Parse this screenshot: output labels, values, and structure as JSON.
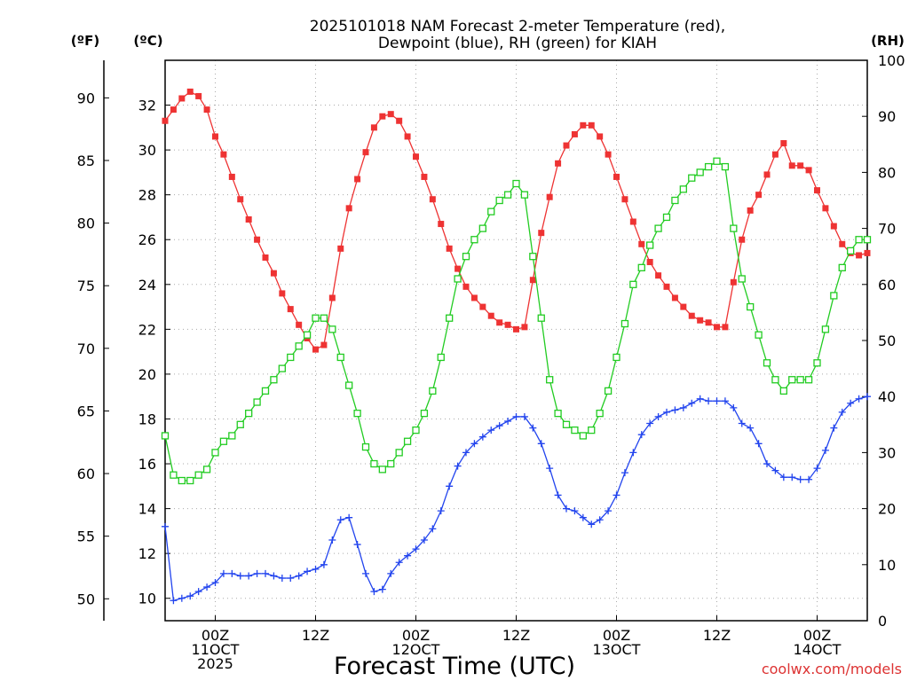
{
  "chart_data": {
    "type": "line",
    "title": "2025101018 NAM Forecast 2-meter Temperature (red),",
    "subtitle": "Dewpoint (blue), RH (green) for KIAH",
    "xlabel": "Forecast Time (UTC)",
    "credit": "coolwx.com/models",
    "units": {
      "fahrenheit": "(ºF)",
      "celsius": "(ºC)",
      "rh": "(RH)"
    },
    "x_start": "2025-10-10 18Z",
    "x_end": "2025-10-14 09Z",
    "x_step_hours": 1,
    "x_ticks": [
      {
        "time": "2025-10-11 00Z",
        "labels": [
          "00Z",
          "11OCT",
          "2025"
        ]
      },
      {
        "time": "2025-10-11 12Z",
        "labels": [
          "12Z"
        ]
      },
      {
        "time": "2025-10-12 00Z",
        "labels": [
          "00Z",
          "12OCT"
        ]
      },
      {
        "time": "2025-10-12 12Z",
        "labels": [
          "12Z"
        ]
      },
      {
        "time": "2025-10-13 00Z",
        "labels": [
          "00Z",
          "13OCT"
        ]
      },
      {
        "time": "2025-10-13 12Z",
        "labels": [
          "12Z"
        ]
      },
      {
        "time": "2025-10-14 00Z",
        "labels": [
          "00Z",
          "14OCT"
        ]
      }
    ],
    "y_left_f": {
      "range": [
        48.25,
        93.0
      ],
      "ticks": [
        50,
        55,
        60,
        65,
        70,
        75,
        80,
        85,
        90
      ]
    },
    "y_left_c": {
      "range": [
        9.0,
        34.0
      ],
      "ticks": [
        10,
        12,
        14,
        16,
        18,
        20,
        22,
        24,
        26,
        28,
        30,
        32
      ]
    },
    "y_right_rh": {
      "range": [
        0,
        100
      ],
      "ticks": [
        0,
        10,
        20,
        30,
        40,
        50,
        60,
        70,
        80,
        90,
        100
      ]
    },
    "grid": true,
    "series": [
      {
        "name": "2-meter Temperature",
        "color": "#ee3333",
        "marker": "filled-square",
        "axis": "celsius",
        "values": [
          31.3,
          31.8,
          32.3,
          32.6,
          32.4,
          31.8,
          30.6,
          29.8,
          28.8,
          27.8,
          26.9,
          26.0,
          25.2,
          24.5,
          23.6,
          22.9,
          22.2,
          21.6,
          21.1,
          21.3,
          23.4,
          25.6,
          27.4,
          28.7,
          29.9,
          31.0,
          31.5,
          31.6,
          31.3,
          30.6,
          29.7,
          28.8,
          27.8,
          26.7,
          25.6,
          24.7,
          23.9,
          23.4,
          23.0,
          22.6,
          22.3,
          22.2,
          22.0,
          22.1,
          24.2,
          26.3,
          27.9,
          29.4,
          30.2,
          30.7,
          31.1,
          31.1,
          30.6,
          29.8,
          28.8,
          27.8,
          26.8,
          25.8,
          25.0,
          24.4,
          23.9,
          23.4,
          23.0,
          22.6,
          22.4,
          22.3,
          22.1,
          22.1,
          24.1,
          26.0,
          27.3,
          28.0,
          28.9,
          29.8,
          30.3,
          29.3,
          29.3,
          29.1,
          28.2,
          27.4,
          26.6,
          25.8,
          25.4,
          25.3,
          25.4
        ]
      },
      {
        "name": "Dewpoint",
        "color": "#2244ee",
        "marker": "plus",
        "axis": "celsius",
        "values": [
          13.2,
          9.9,
          10.0,
          10.1,
          10.3,
          10.5,
          10.7,
          11.1,
          11.1,
          11.0,
          11.0,
          11.1,
          11.1,
          11.0,
          10.9,
          10.9,
          11.0,
          11.2,
          11.3,
          11.5,
          12.6,
          13.5,
          13.6,
          12.4,
          11.1,
          10.3,
          10.4,
          11.1,
          11.6,
          11.9,
          12.2,
          12.6,
          13.1,
          13.9,
          15.0,
          15.9,
          16.5,
          16.9,
          17.2,
          17.5,
          17.7,
          17.9,
          18.1,
          18.1,
          17.6,
          16.9,
          15.8,
          14.6,
          14.0,
          13.9,
          13.6,
          13.3,
          13.5,
          13.9,
          14.6,
          15.6,
          16.5,
          17.3,
          17.8,
          18.1,
          18.3,
          18.4,
          18.5,
          18.7,
          18.9,
          18.8,
          18.8,
          18.8,
          18.5,
          17.8,
          17.6,
          16.9,
          16.0,
          15.7,
          15.4,
          15.4,
          15.3,
          15.3,
          15.8,
          16.6,
          17.6,
          18.3,
          18.7,
          18.9,
          19.0
        ]
      },
      {
        "name": "RH",
        "color": "#22cc22",
        "marker": "open-square",
        "axis": "rh",
        "values": [
          33,
          26,
          25,
          25,
          26,
          27,
          30,
          32,
          33,
          35,
          37,
          39,
          41,
          43,
          45,
          47,
          49,
          51,
          54,
          54,
          52,
          47,
          42,
          37,
          31,
          28,
          27,
          28,
          30,
          32,
          34,
          37,
          41,
          47,
          54,
          61,
          65,
          68,
          70,
          73,
          75,
          76,
          78,
          76,
          65,
          54,
          43,
          37,
          35,
          34,
          33,
          34,
          37,
          41,
          47,
          53,
          60,
          63,
          67,
          70,
          72,
          75,
          77,
          79,
          80,
          81,
          82,
          81,
          70,
          61,
          56,
          51,
          46,
          43,
          41,
          43,
          43,
          43,
          46,
          52,
          58,
          63,
          66,
          68,
          68
        ]
      }
    ]
  }
}
